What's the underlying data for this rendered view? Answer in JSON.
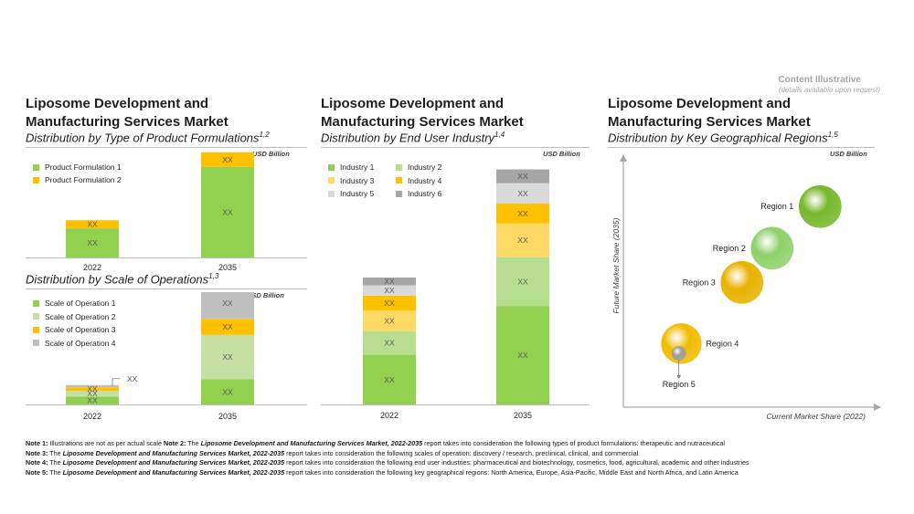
{
  "content_illustrative": {
    "title": "Content Illustrative",
    "subtitle": "(details available upon request)"
  },
  "panels": {
    "left": {
      "title_line1": "Liposome Development and",
      "title_line2": "Manufacturing Services Market",
      "subtitle1": "Distribution by Type of Product Formulations",
      "subtitle1_sup": "1,2",
      "subtitle2": "Distribution by Scale of Operations",
      "subtitle2_sup": "1,3"
    },
    "middle": {
      "title_line1": "Liposome Development and",
      "title_line2": "Manufacturing Services Market",
      "subtitle": "Distribution by End User Industry",
      "subtitle_sup": "1,4"
    },
    "right": {
      "title_line1": "Liposome Development and",
      "title_line2": "Manufacturing Services Market",
      "subtitle": "Distribution by Key Geographical Regions",
      "subtitle_sup": "1,5"
    }
  },
  "chart_data": [
    {
      "id": "product_formulations",
      "type": "bar",
      "stacked": true,
      "unit": "USD Billion",
      "categories": [
        "2022",
        "2035"
      ],
      "series": [
        {
          "name": "Product Formulation 1",
          "color": "#92d050",
          "values": [
            0.9,
            2.8
          ],
          "labels": [
            "XX",
            "XX"
          ]
        },
        {
          "name": "Product Formulation 2",
          "color": "#ffc000",
          "values": [
            0.25,
            0.45
          ],
          "labels": [
            "XX",
            "XX"
          ]
        }
      ],
      "ylim": [
        0,
        3.3
      ],
      "grid": false,
      "legend": "top-left"
    },
    {
      "id": "scale_of_operations",
      "type": "bar",
      "stacked": true,
      "unit": "USD Billion",
      "categories": [
        "2022",
        "2035"
      ],
      "series": [
        {
          "name": "Scale of Operation 1",
          "color": "#92d050",
          "values": [
            0.14,
            0.44
          ],
          "labels": [
            "XX",
            "XX"
          ]
        },
        {
          "name": "Scale of Operation 2",
          "color": "#c6e0a4",
          "values": [
            0.1,
            0.78
          ],
          "labels": [
            "XX",
            "XX"
          ]
        },
        {
          "name": "Scale of Operation 3",
          "color": "#ffc000",
          "values": [
            0.06,
            0.28
          ],
          "labels": [
            "XX",
            "XX"
          ]
        },
        {
          "name": "Scale of Operation 4",
          "color": "#bfbfbf",
          "values": [
            0.04,
            0.55
          ],
          "labels": [
            "",
            "XX"
          ]
        }
      ],
      "callout_label": "XX",
      "ylim": [
        0,
        2.05
      ],
      "grid": false,
      "legend": "top-left"
    },
    {
      "id": "end_user_industry",
      "type": "bar",
      "stacked": true,
      "unit": "USD Billion",
      "categories": [
        "2022",
        "2035"
      ],
      "series": [
        {
          "name": "Industry 1",
          "color": "#92d050",
          "values": [
            0.9,
            1.78
          ],
          "labels": [
            "XX",
            "XX"
          ]
        },
        {
          "name": "Industry 2",
          "color": "#b7de8f",
          "values": [
            0.43,
            0.89
          ],
          "labels": [
            "XX",
            "XX"
          ]
        },
        {
          "name": "Industry 3",
          "color": "#ffd966",
          "values": [
            0.37,
            0.61
          ],
          "labels": [
            "XX",
            "XX"
          ]
        },
        {
          "name": "Industry 4",
          "color": "#ffc000",
          "values": [
            0.27,
            0.36
          ],
          "labels": [
            "XX",
            "XX"
          ]
        },
        {
          "name": "Industry 5",
          "color": "#d9d9d9",
          "values": [
            0.19,
            0.37
          ],
          "labels": [
            "XX",
            "XX"
          ]
        },
        {
          "name": "Industry 6",
          "color": "#a6a6a6",
          "values": [
            0.14,
            0.25
          ],
          "labels": [
            "XX",
            "XX"
          ]
        }
      ],
      "ylim": [
        0,
        4.6
      ],
      "grid": false,
      "legend": "top-left"
    },
    {
      "id": "geographical_regions",
      "type": "scatter",
      "unit": "USD Billion",
      "xlabel": "Current Market Share (2022)",
      "ylabel": "Future Market Share (2035)",
      "xlim": [
        0,
        10
      ],
      "ylim": [
        0,
        10
      ],
      "grid": false,
      "points": [
        {
          "name": "Region 1",
          "x": 7.8,
          "y": 8.2,
          "size": 1.0,
          "color": "#76b82a"
        },
        {
          "name": "Region 2",
          "x": 5.9,
          "y": 6.5,
          "size": 1.0,
          "color": "#8fd16a"
        },
        {
          "name": "Region 3",
          "x": 4.7,
          "y": 5.1,
          "size": 1.0,
          "color": "#e8b200"
        },
        {
          "name": "Region 4",
          "x": 2.3,
          "y": 2.6,
          "size": 0.95,
          "color": "#f0bc00"
        },
        {
          "name": "Region 5",
          "x": 2.2,
          "y": 2.2,
          "size": 0.33,
          "color": "#9e9e9e"
        }
      ]
    }
  ],
  "notes": [
    {
      "label": "Note 1:",
      "text": " Illustrations are not as per actual scale ",
      "label2": "Note 2:",
      "text2": " The ",
      "italic": "Liposome Development and Manufacturing Services Market, 2022-2035",
      "text3": " report takes into consideration the following types of product formulations: therapeutic and nutraceutical"
    },
    {
      "label": "Note 3:",
      "text": " The ",
      "italic": "Liposome Development and Manufacturing Services Market, 2022-2035",
      "text3": " report takes into consideration the following scales of operation: discovery / research, preclinical, clinical, and commercial"
    },
    {
      "label": "Note 4:",
      "text": " The ",
      "italic": "Liposome Development and Manufacturing Services Market, 2022-2035",
      "text3": " report takes into consideration the following end user industries: pharmaceutical and biotechnology, cosmetics, food, agricultural, academic and other industries"
    },
    {
      "label": "Note 5:",
      "text": " The ",
      "italic": "Liposome Development and Manufacturing Services Market, 2022-2035",
      "text3": " report takes into consideration the following key geographical regions: North America, Europe, Asia-Pacific, Middle East and North Africa, and Latin America"
    }
  ]
}
